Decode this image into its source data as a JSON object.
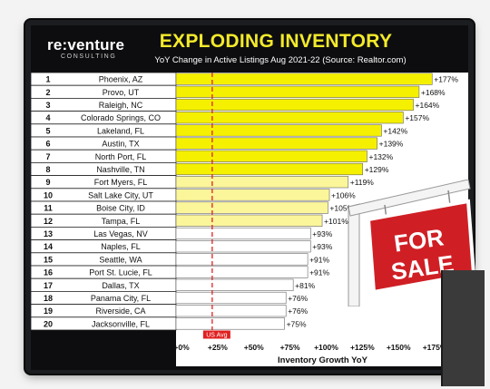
{
  "header": {
    "logo_text": "re:venture",
    "logo_sub": "CONSULTING",
    "title": "EXPLODING INVENTORY",
    "subtitle": "YoY Change in Active Listings Aug 2021-22 (Source: Realtor.com)"
  },
  "sign": {
    "line1": "FOR",
    "line2": "SALE"
  },
  "chart_data": {
    "type": "bar",
    "orientation": "horizontal",
    "ranks": [
      "1",
      "2",
      "3",
      "4",
      "5",
      "6",
      "7",
      "8",
      "9",
      "10",
      "11",
      "12",
      "13",
      "14",
      "15",
      "16",
      "17",
      "18",
      "19",
      "20"
    ],
    "categories": [
      "Phoenix, AZ",
      "Provo, UT",
      "Raleigh, NC",
      "Colorado Springs, CO",
      "Lakeland, FL",
      "Austin, TX",
      "North Port, FL",
      "Nashville, TN",
      "Fort Myers, FL",
      "Salt Lake City, UT",
      "Boise City, ID",
      "Tampa, FL",
      "Las Vegas, NV",
      "Naples, FL",
      "Seattle, WA",
      "Port St. Lucie, FL",
      "Dallas, TX",
      "Panama City, FL",
      "Riverside, CA",
      "Jacksonville, FL"
    ],
    "values": [
      177,
      168,
      164,
      157,
      142,
      139,
      132,
      129,
      119,
      106,
      105,
      101,
      93,
      93,
      91,
      91,
      81,
      76,
      76,
      75
    ],
    "value_labels": [
      "+177%",
      "+168%",
      "+164%",
      "+157%",
      "+142%",
      "+139%",
      "+132%",
      "+129%",
      "+119%",
      "+106%",
      "+105%",
      "+101%",
      "+93%",
      "+93%",
      "+91%",
      "+91%",
      "+81%",
      "+76%",
      "+76%",
      "+75%"
    ],
    "x_ticks": [
      0,
      25,
      50,
      75,
      100,
      125,
      150,
      175
    ],
    "x_tick_labels": [
      "+0%",
      "+25%",
      "+50%",
      "+75%",
      "+100%",
      "+125%",
      "+150%",
      "+175%"
    ],
    "xlabel": "Inventory Growth YoY",
    "xlim": [
      0,
      185
    ],
    "reference_line": {
      "value": 25,
      "label": "US Avg",
      "color": "#e02020"
    },
    "colors": {
      "bar_high": "#f5f000",
      "bar_mid": "#fbf69a",
      "bar_low": "#ffffff",
      "bar_high_min": 120,
      "bar_mid_min": 100
    }
  }
}
